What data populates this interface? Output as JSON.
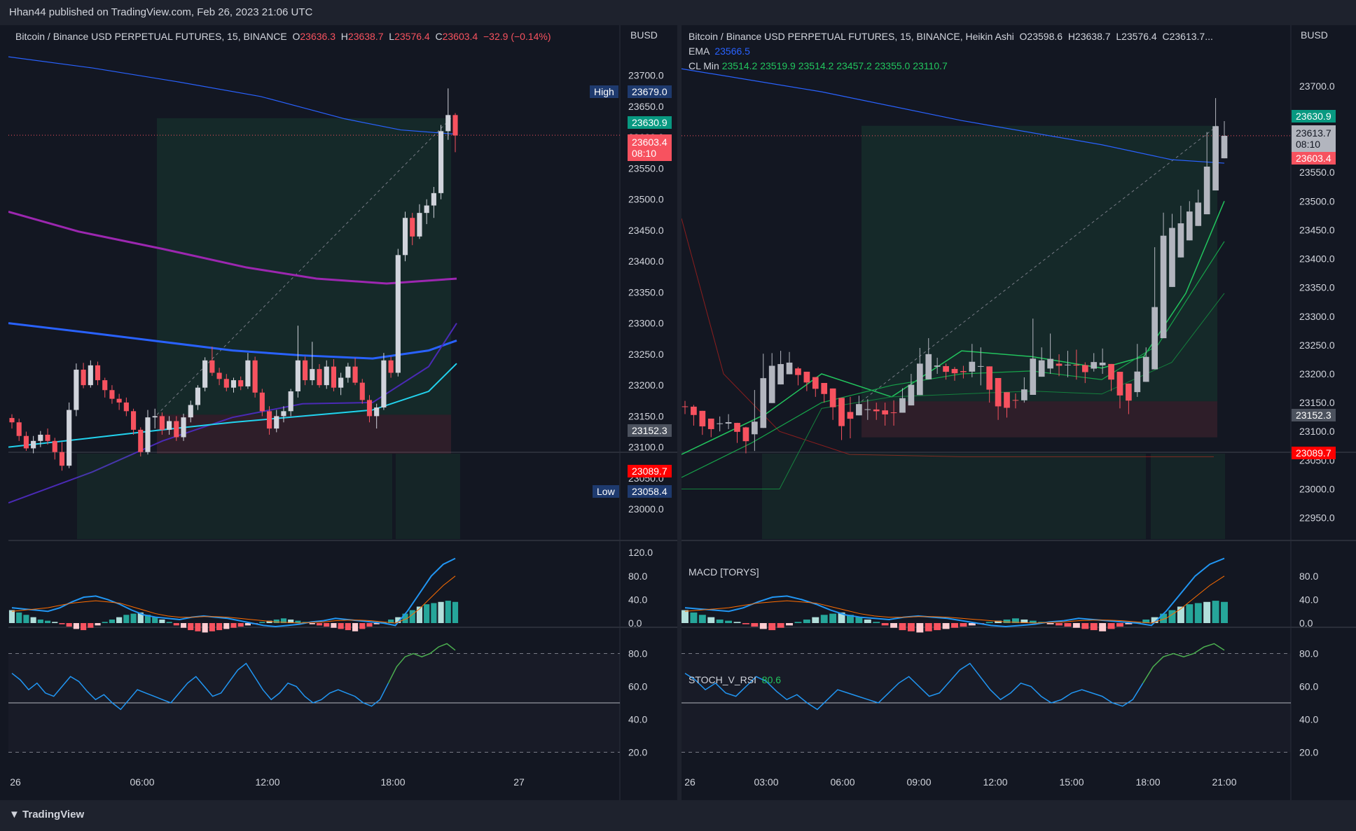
{
  "header": {
    "publisher": "Hhan44 published on TradingView.com, Feb 26, 2023 21:06 UTC"
  },
  "footer": {
    "brand": "TradingView"
  },
  "colors": {
    "up": "#26a69a",
    "down": "#f7525f",
    "bg": "#131722",
    "ema": "#2962ff",
    "clmin": "#22c55e"
  },
  "left": {
    "legend": {
      "symbol": "Bitcoin / Binance USD PERPETUAL FUTURES, 15, BINANCE",
      "o_label": "O",
      "o": "23636.3",
      "h_label": "H",
      "h": "23638.7",
      "l_label": "L",
      "l": "23576.4",
      "c_label": "C",
      "c": "23603.4",
      "chg": "−32.9 (−0.14%)"
    },
    "currency": "BUSD",
    "price_ticks": [
      "23700.0",
      "23650.0",
      "23600.0",
      "23550.0",
      "23500.0",
      "23450.0",
      "23400.0",
      "23350.0",
      "23300.0",
      "23250.0",
      "23200.0",
      "23150.0",
      "23100.0",
      "23050.0",
      "23000.0"
    ],
    "tags": {
      "high_label": "High",
      "high": "23679.0",
      "tp": "23630.9",
      "last": "23603.4",
      "countdown": "08:10",
      "entry": "23152.3",
      "sl": "23089.7",
      "low_label": "Low",
      "low": "23058.4"
    },
    "macd_ticks": [
      "120.0",
      "80.0",
      "40.0",
      "0.0"
    ],
    "rsi_ticks": [
      "80.0",
      "60.0",
      "40.0",
      "20.0"
    ],
    "time_ticks": [
      "26",
      "06:00",
      "12:00",
      "18:00",
      "27"
    ]
  },
  "right": {
    "legend": {
      "symbol": "Bitcoin / Binance USD PERPETUAL FUTURES, 15, BINANCE, Heikin Ashi",
      "o": "O23598.6",
      "h": "H23638.7",
      "l": "L23576.4",
      "c": "C23613.7...",
      "ema_label": "EMA",
      "ema": "23566.5",
      "clmin_label": "CL Min",
      "clmin_values": [
        "23514.2",
        "23519.9",
        "23514.2",
        "23457.2",
        "23355.0",
        "23110.7"
      ]
    },
    "currency": "BUSD",
    "price_ticks": [
      "23700.0",
      "23650.0",
      "23600.0",
      "23550.0",
      "23500.0",
      "23450.0",
      "23400.0",
      "23350.0",
      "23300.0",
      "23250.0",
      "23200.0",
      "23150.0",
      "23100.0",
      "23050.0",
      "23000.0",
      "22950.0"
    ],
    "tags": {
      "tp": "23630.9",
      "last_ha": "23613.7",
      "countdown": "08:10",
      "close": "23603.4",
      "entry": "23152.3",
      "sl": "23089.7"
    },
    "macd_label": "MACD [TORYS]",
    "macd_ticks": [
      "80.0",
      "40.0",
      "0.0"
    ],
    "rsi_label": "STOCH_V_RSI",
    "rsi_value": "80.6",
    "rsi_ticks": [
      "80.0",
      "60.0",
      "40.0",
      "20.0"
    ],
    "time_ticks": [
      "26",
      "03:00",
      "06:00",
      "09:00",
      "12:00",
      "15:00",
      "18:00",
      "21:00"
    ]
  },
  "chart_data": [
    {
      "type": "candlestick",
      "title": "Bitcoin / Binance USD PERPETUAL FUTURES, 15, BINANCE",
      "ylim": [
        22990,
        23720
      ],
      "x_range": [
        "26 00:00",
        "27 00:00"
      ],
      "candles": [
        [
          23147,
          23153,
          23130,
          23140
        ],
        [
          23140,
          23146,
          23110,
          23118
        ],
        [
          23118,
          23125,
          23094,
          23098
        ],
        [
          23098,
          23118,
          23090,
          23110
        ],
        [
          23110,
          23126,
          23100,
          23120
        ],
        [
          23120,
          23130,
          23104,
          23110
        ],
        [
          23110,
          23115,
          23080,
          23092
        ],
        [
          23092,
          23108,
          23062,
          23070
        ],
        [
          23070,
          23172,
          23066,
          23160
        ],
        [
          23160,
          23235,
          23150,
          23225
        ],
        [
          23225,
          23236,
          23195,
          23200
        ],
        [
          23200,
          23240,
          23196,
          23232
        ],
        [
          23232,
          23238,
          23200,
          23208
        ],
        [
          23208,
          23212,
          23180,
          23192
        ],
        [
          23192,
          23200,
          23170,
          23178
        ],
        [
          23178,
          23186,
          23160,
          23172
        ],
        [
          23172,
          23180,
          23150,
          23158
        ],
        [
          23158,
          23162,
          23120,
          23128
        ],
        [
          23128,
          23132,
          23085,
          23092
        ],
        [
          23092,
          23160,
          23088,
          23148
        ],
        [
          23148,
          23162,
          23130,
          23150
        ],
        [
          23150,
          23156,
          23120,
          23128
        ],
        [
          23128,
          23150,
          23120,
          23142
        ],
        [
          23142,
          23150,
          23110,
          23116
        ],
        [
          23116,
          23154,
          23110,
          23148
        ],
        [
          23148,
          23175,
          23140,
          23168
        ],
        [
          23168,
          23200,
          23160,
          23196
        ],
        [
          23196,
          23245,
          23190,
          23240
        ],
        [
          23240,
          23262,
          23215,
          23220
        ],
        [
          23220,
          23228,
          23200,
          23210
        ],
        [
          23210,
          23218,
          23190,
          23196
        ],
        [
          23196,
          23212,
          23188,
          23208
        ],
        [
          23208,
          23214,
          23192,
          23198
        ],
        [
          23198,
          23252,
          23194,
          23240
        ],
        [
          23240,
          23246,
          23180,
          23188
        ],
        [
          23188,
          23194,
          23150,
          23158
        ],
        [
          23158,
          23166,
          23120,
          23130
        ],
        [
          23130,
          23160,
          23124,
          23150
        ],
        [
          23150,
          23166,
          23140,
          23158
        ],
        [
          23158,
          23194,
          23150,
          23190
        ],
        [
          23190,
          23296,
          23180,
          23240
        ],
        [
          23240,
          23246,
          23200,
          23208
        ],
        [
          23208,
          23270,
          23200,
          23226
        ],
        [
          23226,
          23234,
          23196,
          23200
        ],
        [
          23200,
          23240,
          23194,
          23230
        ],
        [
          23230,
          23242,
          23190,
          23196
        ],
        [
          23196,
          23220,
          23184,
          23212
        ],
        [
          23212,
          23236,
          23204,
          23230
        ],
        [
          23230,
          23244,
          23200,
          23204
        ],
        [
          23204,
          23210,
          23170,
          23176
        ],
        [
          23176,
          23184,
          23140,
          23150
        ],
        [
          23150,
          23170,
          23130,
          23164
        ],
        [
          23164,
          23252,
          23160,
          23240
        ],
        [
          23240,
          23246,
          23212,
          23220
        ],
        [
          23220,
          23420,
          23214,
          23410
        ],
        [
          23410,
          23480,
          23400,
          23470
        ],
        [
          23470,
          23478,
          23426,
          23440
        ],
        [
          23440,
          23492,
          23436,
          23478
        ],
        [
          23478,
          23500,
          23460,
          23490
        ],
        [
          23490,
          23520,
          23470,
          23510
        ],
        [
          23510,
          23620,
          23500,
          23610
        ],
        [
          23610,
          23679,
          23596,
          23636
        ],
        [
          23636,
          23639,
          23576,
          23603
        ]
      ],
      "lines": [
        {
          "name": "",
          "color": "#2962ff",
          "values": "blue 200-ish moving average ~23652→23566"
        },
        {
          "name": "",
          "color": "#9c27b0"
        },
        {
          "name": "",
          "color": "#2962ff"
        },
        {
          "name": "",
          "color": "#4a2ab5"
        },
        {
          "name": "",
          "color": "#22d3ee"
        }
      ],
      "levels": {
        "tp": 23630.9,
        "entry": 23152.3,
        "sl": 23089.7,
        "high": 23679.0,
        "low": 23058.4,
        "last": 23603.4
      }
    },
    {
      "type": "candlestick",
      "title": "Bitcoin / Binance USD PERPETUAL FUTURES, 15, BINANCE, Heikin Ashi",
      "ylim": [
        22930,
        23740
      ],
      "levels": {
        "tp": 23630.9,
        "entry": 23152.3,
        "sl": 23089.7,
        "last": 23613.7,
        "close": 23603.4,
        "ema": 23566.5
      }
    },
    {
      "type": "line",
      "title": "STOCH_V_RSI",
      "ylim": [
        10,
        90
      ],
      "series": [
        {
          "name": "STOCH_V_RSI",
          "values": [
            68,
            64,
            58,
            62,
            56,
            54,
            60,
            66,
            63,
            57,
            52,
            55,
            50,
            46,
            52,
            58,
            56,
            54,
            52,
            50,
            56,
            62,
            66,
            60,
            54,
            56,
            63,
            70,
            74,
            66,
            58,
            52,
            56,
            62,
            60,
            54,
            50,
            52,
            56,
            58,
            56,
            54,
            50,
            48,
            52,
            62,
            72,
            78,
            80,
            78,
            80,
            84,
            86,
            82
          ]
        }
      ]
    }
  ]
}
